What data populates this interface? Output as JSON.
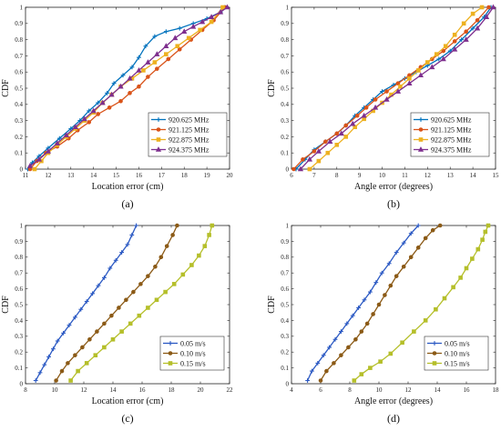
{
  "chart_data": [
    {
      "type": "line",
      "caption": "(a)",
      "xlabel": "Location error (cm)",
      "ylabel": "CDF",
      "xlim": [
        11,
        20
      ],
      "ylim": [
        0,
        1
      ],
      "xticks": [
        11,
        12,
        13,
        14,
        15,
        16,
        17,
        18,
        19,
        20
      ],
      "yticks": [
        0,
        0.1,
        0.2,
        0.3,
        0.4,
        0.5,
        0.6,
        0.7,
        0.8,
        0.9,
        1
      ],
      "legend_position": "bottom-right",
      "series": [
        {
          "name": "920.625 MHz",
          "color": "#0072BD",
          "marker": "plus",
          "x": [
            11.1,
            11.3,
            11.6,
            12.0,
            12.5,
            13.0,
            13.4,
            13.8,
            14.2,
            14.6,
            14.9,
            15.3,
            15.7,
            16.0,
            16.3,
            16.7,
            17.2,
            17.8,
            18.4,
            19.0,
            19.6,
            19.8
          ],
          "y": [
            0.0,
            0.04,
            0.08,
            0.13,
            0.19,
            0.25,
            0.3,
            0.36,
            0.41,
            0.47,
            0.53,
            0.58,
            0.63,
            0.69,
            0.76,
            0.82,
            0.85,
            0.87,
            0.9,
            0.93,
            0.97,
            1.0
          ]
        },
        {
          "name": "921.125 MHz",
          "color": "#D95319",
          "marker": "circle",
          "x": [
            11.2,
            11.5,
            11.9,
            12.4,
            12.9,
            13.3,
            13.8,
            14.2,
            14.7,
            15.2,
            15.6,
            16.0,
            16.4,
            16.8,
            17.3,
            17.8,
            18.3,
            18.8,
            19.3,
            19.8
          ],
          "y": [
            0.0,
            0.05,
            0.1,
            0.14,
            0.19,
            0.24,
            0.29,
            0.34,
            0.38,
            0.42,
            0.47,
            0.51,
            0.57,
            0.62,
            0.68,
            0.74,
            0.8,
            0.86,
            0.92,
            1.0
          ]
        },
        {
          "name": "922.875 MHz",
          "color": "#EDB120",
          "marker": "square",
          "x": [
            11.4,
            11.7,
            12.0,
            12.4,
            12.8,
            13.2,
            13.6,
            14.0,
            14.4,
            14.8,
            15.2,
            15.7,
            16.2,
            16.7,
            17.2,
            17.7,
            18.2,
            18.7,
            19.2,
            19.7
          ],
          "y": [
            0.0,
            0.05,
            0.1,
            0.15,
            0.2,
            0.25,
            0.3,
            0.35,
            0.41,
            0.46,
            0.51,
            0.56,
            0.61,
            0.66,
            0.71,
            0.76,
            0.81,
            0.86,
            0.91,
            1.0
          ]
        },
        {
          "name": "924.375 MHz",
          "color": "#7E2F8E",
          "marker": "triangle",
          "x": [
            11.2,
            11.6,
            12.0,
            12.4,
            12.8,
            13.2,
            13.6,
            14.0,
            14.4,
            14.8,
            15.2,
            15.6,
            16.0,
            16.4,
            16.8,
            17.2,
            17.6,
            18.0,
            18.4,
            18.8,
            19.2,
            19.6,
            19.9
          ],
          "y": [
            0.02,
            0.06,
            0.11,
            0.16,
            0.21,
            0.26,
            0.31,
            0.36,
            0.41,
            0.46,
            0.51,
            0.56,
            0.61,
            0.66,
            0.71,
            0.76,
            0.81,
            0.85,
            0.88,
            0.91,
            0.94,
            0.97,
            1.0
          ]
        }
      ]
    },
    {
      "type": "line",
      "caption": "(b)",
      "xlabel": "Angle error (degrees)",
      "ylabel": "CDF",
      "xlim": [
        6,
        15
      ],
      "ylim": [
        0,
        1
      ],
      "xticks": [
        6,
        7,
        8,
        9,
        10,
        11,
        12,
        13,
        14,
        15
      ],
      "yticks": [
        0,
        0.1,
        0.2,
        0.3,
        0.4,
        0.5,
        0.6,
        0.7,
        0.8,
        0.9,
        1
      ],
      "legend_position": "bottom-right",
      "series": [
        {
          "name": "920.625 MHz",
          "color": "#0072BD",
          "marker": "plus",
          "x": [
            6.2,
            6.6,
            7.0,
            7.5,
            8.0,
            8.4,
            8.8,
            9.2,
            9.6,
            10.0,
            10.5,
            11.0,
            11.5,
            12.0,
            12.5,
            13.0,
            13.5,
            14.0,
            14.5,
            14.8
          ],
          "y": [
            0.0,
            0.06,
            0.12,
            0.17,
            0.22,
            0.27,
            0.33,
            0.38,
            0.43,
            0.48,
            0.52,
            0.56,
            0.6,
            0.64,
            0.68,
            0.73,
            0.8,
            0.87,
            0.94,
            1.0
          ]
        },
        {
          "name": "921.125 MHz",
          "color": "#D95319",
          "marker": "circle",
          "x": [
            6.1,
            6.5,
            7.0,
            7.5,
            8.0,
            8.4,
            8.9,
            9.3,
            9.7,
            10.2,
            10.7,
            11.2,
            11.7,
            12.2,
            12.7,
            13.2,
            13.7,
            14.2,
            14.7
          ],
          "y": [
            0.0,
            0.06,
            0.11,
            0.17,
            0.22,
            0.27,
            0.33,
            0.38,
            0.43,
            0.48,
            0.53,
            0.58,
            0.63,
            0.68,
            0.73,
            0.79,
            0.85,
            0.92,
            1.0
          ]
        },
        {
          "name": "922.875 MHz",
          "color": "#EDB120",
          "marker": "square",
          "x": [
            6.8,
            7.2,
            7.6,
            8.0,
            8.4,
            8.8,
            9.2,
            9.6,
            10.0,
            10.4,
            10.8,
            11.2,
            11.6,
            12.0,
            12.4,
            12.8,
            13.2,
            13.6,
            14.0,
            14.4
          ],
          "y": [
            0.0,
            0.05,
            0.1,
            0.15,
            0.2,
            0.26,
            0.31,
            0.36,
            0.41,
            0.46,
            0.51,
            0.56,
            0.61,
            0.66,
            0.71,
            0.76,
            0.83,
            0.9,
            0.96,
            1.0
          ]
        },
        {
          "name": "924.375 MHz",
          "color": "#7E2F8E",
          "marker": "triangle",
          "x": [
            6.4,
            6.8,
            7.2,
            7.7,
            8.2,
            8.7,
            9.2,
            9.7,
            10.2,
            10.7,
            11.2,
            11.7,
            12.2,
            12.7,
            13.2,
            13.7,
            14.2,
            14.6,
            14.9
          ],
          "y": [
            0.0,
            0.06,
            0.11,
            0.17,
            0.22,
            0.28,
            0.33,
            0.38,
            0.43,
            0.48,
            0.53,
            0.58,
            0.63,
            0.68,
            0.74,
            0.8,
            0.87,
            0.94,
            1.0
          ]
        }
      ]
    },
    {
      "type": "line",
      "caption": "(c)",
      "xlabel": "Location error (cm)",
      "ylabel": "CDF",
      "xlim": [
        8,
        22
      ],
      "ylim": [
        0,
        1
      ],
      "xticks": [
        8,
        10,
        12,
        14,
        16,
        18,
        20,
        22
      ],
      "yticks": [
        0,
        0.1,
        0.2,
        0.3,
        0.4,
        0.5,
        0.6,
        0.7,
        0.8,
        0.9,
        1
      ],
      "legend_position": "bottom-right",
      "series": [
        {
          "name": "0.05 m/s",
          "color": "#2B59C3",
          "marker": "plus",
          "x": [
            8.7,
            9.0,
            9.3,
            9.6,
            9.9,
            10.2,
            10.6,
            11.0,
            11.4,
            11.8,
            12.2,
            12.6,
            13.0,
            13.4,
            13.8,
            14.2,
            14.6,
            15.0,
            15.3,
            15.6
          ],
          "y": [
            0.02,
            0.07,
            0.12,
            0.17,
            0.22,
            0.27,
            0.32,
            0.37,
            0.42,
            0.47,
            0.52,
            0.57,
            0.62,
            0.67,
            0.73,
            0.78,
            0.83,
            0.88,
            0.94,
            1.0
          ]
        },
        {
          "name": "0.10 m/s",
          "color": "#8B5A16",
          "marker": "circle",
          "x": [
            10.1,
            10.5,
            10.9,
            11.4,
            11.9,
            12.4,
            12.9,
            13.4,
            13.9,
            14.4,
            14.9,
            15.4,
            15.9,
            16.4,
            16.9,
            17.3,
            17.7,
            18.1,
            18.4
          ],
          "y": [
            0.02,
            0.08,
            0.13,
            0.18,
            0.23,
            0.28,
            0.33,
            0.38,
            0.43,
            0.48,
            0.53,
            0.58,
            0.63,
            0.68,
            0.74,
            0.8,
            0.87,
            0.94,
            1.0
          ]
        },
        {
          "name": "0.15 m/s",
          "color": "#B5BF2A",
          "marker": "square",
          "x": [
            11.1,
            11.6,
            12.2,
            12.8,
            13.4,
            14.0,
            14.6,
            15.2,
            15.8,
            16.4,
            17.0,
            17.6,
            18.2,
            18.8,
            19.4,
            19.9,
            20.3,
            20.6,
            20.8
          ],
          "y": [
            0.02,
            0.08,
            0.13,
            0.18,
            0.23,
            0.28,
            0.33,
            0.38,
            0.43,
            0.48,
            0.53,
            0.58,
            0.63,
            0.69,
            0.75,
            0.81,
            0.87,
            0.94,
            1.0
          ]
        }
      ]
    },
    {
      "type": "line",
      "caption": "(d)",
      "xlabel": "Angle error (degrees)",
      "ylabel": "CDF",
      "xlim": [
        4,
        18
      ],
      "ylim": [
        0,
        1
      ],
      "xticks": [
        4,
        6,
        8,
        10,
        12,
        14,
        16,
        18
      ],
      "yticks": [
        0,
        0.1,
        0.2,
        0.3,
        0.4,
        0.5,
        0.6,
        0.7,
        0.8,
        0.9,
        1
      ],
      "legend_position": "bottom-right",
      "series": [
        {
          "name": "0.05 m/s",
          "color": "#2B59C3",
          "marker": "plus",
          "x": [
            5.1,
            5.4,
            5.8,
            6.2,
            6.6,
            7.0,
            7.4,
            7.8,
            8.2,
            8.6,
            9.0,
            9.4,
            9.8,
            10.2,
            10.7,
            11.2,
            11.7,
            12.2,
            12.7
          ],
          "y": [
            0.02,
            0.08,
            0.13,
            0.18,
            0.23,
            0.28,
            0.33,
            0.38,
            0.43,
            0.48,
            0.53,
            0.58,
            0.64,
            0.7,
            0.76,
            0.83,
            0.89,
            0.95,
            1.0
          ]
        },
        {
          "name": "0.10 m/s",
          "color": "#8B5A16",
          "marker": "circle",
          "x": [
            6.0,
            6.4,
            6.9,
            7.4,
            7.9,
            8.4,
            8.8,
            9.2,
            9.6,
            10.0,
            10.4,
            10.8,
            11.2,
            11.7,
            12.2,
            12.7,
            13.2,
            13.7,
            14.2
          ],
          "y": [
            0.02,
            0.08,
            0.13,
            0.18,
            0.23,
            0.28,
            0.33,
            0.38,
            0.44,
            0.5,
            0.56,
            0.62,
            0.68,
            0.74,
            0.8,
            0.86,
            0.92,
            0.97,
            1.0
          ]
        },
        {
          "name": "0.15 m/s",
          "color": "#B5BF2A",
          "marker": "square",
          "x": [
            8.3,
            8.8,
            9.4,
            10.1,
            10.8,
            11.6,
            12.4,
            13.2,
            13.9,
            14.5,
            15.1,
            15.6,
            16.0,
            16.4,
            16.8,
            17.1,
            17.3,
            17.5
          ],
          "y": [
            0.02,
            0.06,
            0.1,
            0.14,
            0.19,
            0.26,
            0.33,
            0.4,
            0.47,
            0.54,
            0.61,
            0.67,
            0.73,
            0.79,
            0.85,
            0.91,
            0.96,
            1.0
          ]
        }
      ]
    }
  ]
}
